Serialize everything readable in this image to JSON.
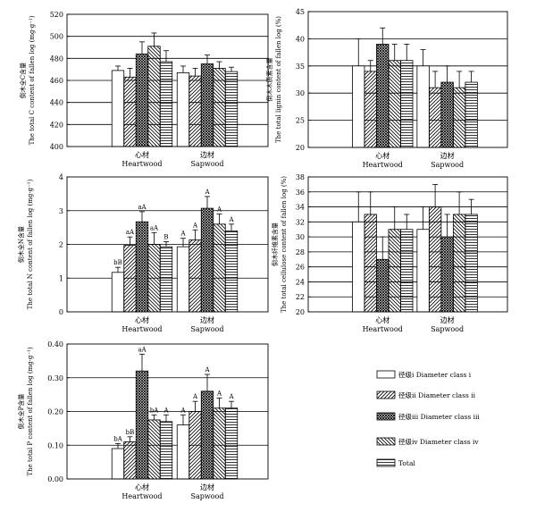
{
  "legend": {
    "items": [
      {
        "label": "径级i  Diameter class i",
        "pattern": "blank"
      },
      {
        "label": "径级ii  Diameter class ii",
        "pattern": "diag"
      },
      {
        "label": "径级iii  Diameter class iii",
        "pattern": "cross"
      },
      {
        "label": "径级iv  Diameter class iv",
        "pattern": "backdiag"
      },
      {
        "label": "Total",
        "pattern": "horiz"
      }
    ]
  },
  "chart_data": [
    {
      "type": "bar",
      "ylabel": "倒木全C含量\nThe total C content of fallen log (mg·g⁻¹)",
      "ylim": [
        400,
        520
      ],
      "yticks": [
        "400",
        "420",
        "440",
        "460",
        "480",
        "500",
        "520"
      ],
      "grid": true,
      "categories": [
        {
          "cn": "心材",
          "en": "Heartwood"
        },
        {
          "cn": "边材",
          "en": "Sapwood"
        }
      ],
      "series": [
        {
          "name": "径级i  Diameter class i",
          "values": [
            469,
            467
          ],
          "errors": [
            4,
            6
          ]
        },
        {
          "name": "径级ii  Diameter class ii",
          "values": [
            463,
            464
          ],
          "errors": [
            8,
            7
          ]
        },
        {
          "name": "径级iii  Diameter class iii",
          "values": [
            484,
            475
          ],
          "errors": [
            11,
            8
          ]
        },
        {
          "name": "径级iv  Diameter class iv",
          "values": [
            491,
            471
          ],
          "errors": [
            12,
            6
          ]
        },
        {
          "name": "Total",
          "values": [
            477,
            468
          ],
          "errors": [
            10,
            4
          ]
        }
      ],
      "labels": []
    },
    {
      "type": "bar",
      "ylabel": "倒木木质素含量\nThe total lignin content of fallen log (%)",
      "ylim": [
        20,
        45
      ],
      "yticks": [
        "20",
        "25",
        "30",
        "35",
        "40",
        "45"
      ],
      "grid": true,
      "categories": [
        {
          "cn": "心材",
          "en": "Heartwood"
        },
        {
          "cn": "边材",
          "en": "Sapwood"
        }
      ],
      "series": [
        {
          "name": "径级i  Diameter class i",
          "values": [
            35,
            35
          ],
          "errors": [
            5,
            3
          ]
        },
        {
          "name": "径级ii  Diameter class ii",
          "values": [
            34,
            31
          ],
          "errors": [
            2,
            3
          ]
        },
        {
          "name": "径级iii  Diameter class iii",
          "values": [
            39,
            32
          ],
          "errors": [
            3,
            3
          ]
        },
        {
          "name": "径级iv  Diameter class iv",
          "values": [
            36,
            31
          ],
          "errors": [
            3,
            3
          ]
        },
        {
          "name": "Total",
          "values": [
            36,
            32
          ],
          "errors": [
            3,
            2
          ]
        }
      ],
      "labels": []
    },
    {
      "type": "bar",
      "ylabel": "倒木全N含量\nThe total N content of fallen log (mg·g⁻¹)",
      "ylim": [
        0,
        4
      ],
      "yticks": [
        "0",
        "1",
        "2",
        "3",
        "4"
      ],
      "grid": true,
      "categories": [
        {
          "cn": "心材",
          "en": "Heartwood"
        },
        {
          "cn": "边材",
          "en": "Sapwood"
        }
      ],
      "series": [
        {
          "name": "径级i  Diameter class i",
          "values": [
            1.17,
            1.93
          ],
          "errors": [
            0.15,
            0.25
          ]
        },
        {
          "name": "径级ii  Diameter class ii",
          "values": [
            1.97,
            2.13
          ],
          "errors": [
            0.25,
            0.3
          ]
        },
        {
          "name": "径级iii  Diameter class iii",
          "values": [
            2.67,
            3.07
          ],
          "errors": [
            0.3,
            0.35
          ]
        },
        {
          "name": "径级iv  Diameter class iv",
          "values": [
            2.0,
            2.6
          ],
          "errors": [
            0.35,
            0.3
          ]
        },
        {
          "name": "Total",
          "values": [
            1.93,
            2.4
          ],
          "errors": [
            0.15,
            0.2
          ]
        }
      ],
      "labels": [
        [
          "bB",
          "A"
        ],
        [
          "aA",
          "A"
        ],
        [
          "aA",
          "A"
        ],
        [
          "aA",
          "A"
        ],
        [
          "B",
          "A"
        ]
      ]
    },
    {
      "type": "bar",
      "ylabel": "倒木纤维素含量\nThe total cellulose content of fallen log (%)",
      "ylim": [
        20,
        38
      ],
      "yticks": [
        "20",
        "22",
        "24",
        "26",
        "28",
        "30",
        "32",
        "34",
        "36",
        "38"
      ],
      "grid": true,
      "categories": [
        {
          "cn": "心材",
          "en": "Heartwood"
        },
        {
          "cn": "边材",
          "en": "Sapwood"
        }
      ],
      "series": [
        {
          "name": "径级i  Diameter class i",
          "values": [
            32,
            31
          ],
          "errors": [
            4,
            3
          ]
        },
        {
          "name": "径级ii  Diameter class ii",
          "values": [
            33,
            34
          ],
          "errors": [
            3,
            3
          ]
        },
        {
          "name": "径级iii  Diameter class iii",
          "values": [
            27,
            30
          ],
          "errors": [
            3,
            3
          ]
        },
        {
          "name": "径级iv  Diameter class iv",
          "values": [
            31,
            33
          ],
          "errors": [
            3,
            3
          ]
        },
        {
          "name": "Total",
          "values": [
            31,
            33
          ],
          "errors": [
            2,
            2
          ]
        }
      ],
      "labels": []
    },
    {
      "type": "bar",
      "ylabel": "倒木全P含量\nThe total P content of fallen log (mg·g⁻¹)",
      "ylim": [
        0,
        0.4
      ],
      "yticks": [
        "0.00",
        "0.10",
        "0.20",
        "0.30",
        "0.40"
      ],
      "grid": true,
      "categories": [
        {
          "cn": "心材",
          "en": "Heartwood"
        },
        {
          "cn": "边材",
          "en": "Sapwood"
        }
      ],
      "series": [
        {
          "name": "径级i  Diameter class i",
          "values": [
            0.09,
            0.16
          ],
          "errors": [
            0.015,
            0.03
          ]
        },
        {
          "name": "径级ii  Diameter class ii",
          "values": [
            0.11,
            0.2
          ],
          "errors": [
            0.015,
            0.03
          ]
        },
        {
          "name": "径级iii  Diameter class iii",
          "values": [
            0.32,
            0.26
          ],
          "errors": [
            0.05,
            0.05
          ]
        },
        {
          "name": "径级iv  Diameter class iv",
          "values": [
            0.175,
            0.21
          ],
          "errors": [
            0.015,
            0.03
          ]
        },
        {
          "name": "Total",
          "values": [
            0.17,
            0.21
          ],
          "errors": [
            0.02,
            0.02
          ]
        }
      ],
      "labels": [
        [
          "bA",
          "A"
        ],
        [
          "bB",
          "A"
        ],
        [
          "aA",
          "A"
        ],
        [
          "bA",
          "A"
        ],
        [
          "A",
          "A"
        ]
      ]
    }
  ]
}
